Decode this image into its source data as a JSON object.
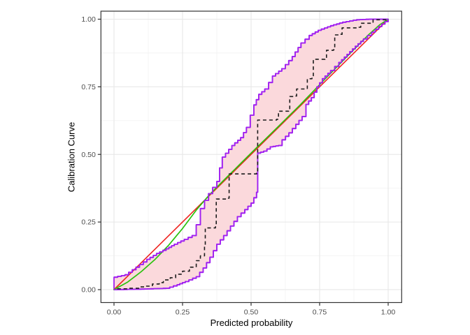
{
  "chart_data": {
    "type": "line",
    "title": "",
    "xlabel": "Predicted probability",
    "ylabel": "Calibration Curve",
    "x_tick_labels": [
      "0.00",
      "0.25",
      "0.50",
      "0.75",
      "1.00"
    ],
    "y_tick_labels": [
      "0.00",
      "0.25",
      "0.50",
      "0.75",
      "1.00"
    ],
    "x_tick_values": [
      0,
      0.25,
      0.5,
      0.75,
      1.0
    ],
    "y_tick_values": [
      0,
      0.25,
      0.5,
      0.75,
      1.0
    ],
    "x_minor_values": [
      0.125,
      0.375,
      0.625,
      0.875
    ],
    "y_minor_values": [
      0.125,
      0.375,
      0.625,
      0.875
    ],
    "xlim": [
      -0.048,
      1.049
    ],
    "ylim": [
      -0.048,
      1.03
    ],
    "grid": "on",
    "legend": "none",
    "colors": {
      "ideal_line": "#ee2420",
      "calibration_line": "#2bc20e",
      "band_stroke": "#a020f0",
      "band_fill": "#fbd9dc",
      "observed_step": "#1c1c1c",
      "grid_major": "#e6e6e6",
      "grid_minor": "#f2f2f2",
      "panel_border": "#333333",
      "tick_label": "#4d4d4d"
    },
    "series": [
      {
        "name": "ideal_line",
        "style": "solid straight diagonal, red",
        "points": [
          [
            0,
            0
          ],
          [
            1,
            1
          ]
        ]
      },
      {
        "name": "calibration_line",
        "style": "smooth solid, green",
        "points": [
          [
            0,
            0
          ],
          [
            0.05,
            0.028
          ],
          [
            0.1,
            0.067
          ],
          [
            0.15,
            0.112
          ],
          [
            0.2,
            0.165
          ],
          [
            0.25,
            0.226
          ],
          [
            0.3,
            0.294
          ],
          [
            0.35,
            0.353
          ],
          [
            0.4,
            0.404
          ],
          [
            0.5,
            0.505
          ],
          [
            0.6,
            0.604
          ],
          [
            0.68,
            0.684
          ],
          [
            0.75,
            0.758
          ],
          [
            0.85,
            0.862
          ],
          [
            0.93,
            0.944
          ],
          [
            0.97,
            0.98
          ],
          [
            1.0,
            1.0
          ]
        ]
      },
      {
        "name": "observed_step",
        "style": "dashed staircase, black",
        "points": [
          [
            0.012,
            0.003
          ],
          [
            0.05,
            0.005
          ],
          [
            0.09,
            0.01
          ],
          [
            0.115,
            0.013
          ],
          [
            0.14,
            0.021
          ],
          [
            0.165,
            0.026
          ],
          [
            0.18,
            0.036
          ],
          [
            0.205,
            0.044
          ],
          [
            0.225,
            0.057
          ],
          [
            0.25,
            0.068
          ],
          [
            0.275,
            0.083
          ],
          [
            0.3,
            0.107
          ],
          [
            0.315,
            0.125
          ],
          [
            0.33,
            0.165
          ],
          [
            0.333,
            0.228
          ],
          [
            0.37,
            0.232
          ],
          [
            0.373,
            0.335
          ],
          [
            0.415,
            0.338
          ],
          [
            0.42,
            0.428
          ],
          [
            0.52,
            0.431
          ],
          [
            0.524,
            0.627
          ],
          [
            0.593,
            0.63
          ],
          [
            0.6,
            0.66
          ],
          [
            0.637,
            0.662
          ],
          [
            0.641,
            0.714
          ],
          [
            0.662,
            0.716
          ],
          [
            0.666,
            0.742
          ],
          [
            0.7,
            0.744
          ],
          [
            0.705,
            0.78
          ],
          [
            0.722,
            0.782
          ],
          [
            0.727,
            0.852
          ],
          [
            0.77,
            0.854
          ],
          [
            0.775,
            0.885
          ],
          [
            0.8,
            0.887
          ],
          [
            0.805,
            0.942
          ],
          [
            0.827,
            0.944
          ],
          [
            0.832,
            0.968
          ],
          [
            0.894,
            0.97
          ],
          [
            0.9,
            0.985
          ],
          [
            0.94,
            0.987
          ],
          [
            0.945,
            0.998
          ],
          [
            1.0,
            1.0
          ]
        ]
      },
      {
        "name": "confidence_band_lower",
        "style": "stepped purple edge of pink band",
        "points": [
          [
            0,
            0
          ],
          [
            0.1,
            0.002
          ],
          [
            0.19,
            0.005
          ],
          [
            0.23,
            0.018
          ],
          [
            0.26,
            0.03
          ],
          [
            0.3,
            0.048
          ],
          [
            0.325,
            0.08
          ],
          [
            0.35,
            0.12
          ],
          [
            0.375,
            0.168
          ],
          [
            0.4,
            0.2
          ],
          [
            0.425,
            0.235
          ],
          [
            0.45,
            0.27
          ],
          [
            0.477,
            0.296
          ],
          [
            0.5,
            0.32
          ],
          [
            0.52,
            0.36
          ],
          [
            0.524,
            0.505
          ],
          [
            0.546,
            0.512
          ],
          [
            0.57,
            0.528
          ],
          [
            0.6,
            0.533
          ],
          [
            0.613,
            0.554
          ],
          [
            0.638,
            0.58
          ],
          [
            0.663,
            0.611
          ],
          [
            0.686,
            0.64
          ],
          [
            0.7,
            0.685
          ],
          [
            0.72,
            0.71
          ],
          [
            0.74,
            0.75
          ],
          [
            0.76,
            0.78
          ],
          [
            0.79,
            0.81
          ],
          [
            0.82,
            0.84
          ],
          [
            0.85,
            0.87
          ],
          [
            0.88,
            0.9
          ],
          [
            0.91,
            0.927
          ],
          [
            0.94,
            0.952
          ],
          [
            0.965,
            0.973
          ],
          [
            1.0,
            1.0
          ]
        ]
      },
      {
        "name": "confidence_band_upper",
        "style": "stepped purple edge of pink band",
        "points": [
          [
            0,
            0.046
          ],
          [
            0.04,
            0.055
          ],
          [
            0.08,
            0.083
          ],
          [
            0.12,
            0.112
          ],
          [
            0.155,
            0.134
          ],
          [
            0.19,
            0.151
          ],
          [
            0.22,
            0.168
          ],
          [
            0.256,
            0.186
          ],
          [
            0.285,
            0.2
          ],
          [
            0.3,
            0.24
          ],
          [
            0.315,
            0.3
          ],
          [
            0.33,
            0.33
          ],
          [
            0.345,
            0.355
          ],
          [
            0.36,
            0.378
          ],
          [
            0.375,
            0.4
          ],
          [
            0.385,
            0.45
          ],
          [
            0.395,
            0.49
          ],
          [
            0.43,
            0.533
          ],
          [
            0.462,
            0.562
          ],
          [
            0.483,
            0.6
          ],
          [
            0.497,
            0.645
          ],
          [
            0.51,
            0.683
          ],
          [
            0.528,
            0.722
          ],
          [
            0.55,
            0.742
          ],
          [
            0.578,
            0.79
          ],
          [
            0.612,
            0.817
          ],
          [
            0.65,
            0.862
          ],
          [
            0.682,
            0.912
          ],
          [
            0.712,
            0.94
          ],
          [
            0.745,
            0.959
          ],
          [
            0.79,
            0.976
          ],
          [
            0.834,
            0.989
          ],
          [
            0.885,
            0.998
          ],
          [
            0.93,
            1.0
          ],
          [
            1.0,
            1.0
          ]
        ]
      }
    ]
  }
}
